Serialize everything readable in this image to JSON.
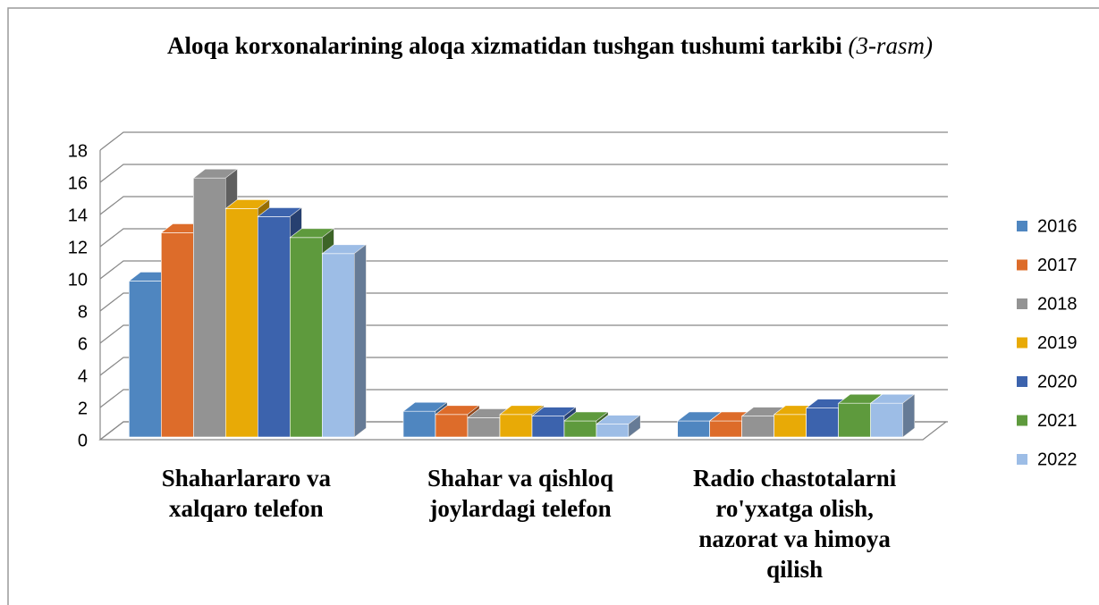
{
  "chart_data": {
    "type": "bar3d",
    "title": "Aloqa korxonalarining aloqa xizmatidan tushgan tushumi tarkibi",
    "subtitle": "(3-rasm)",
    "categories": [
      "Shaharlararo va xalqaro telefon",
      "Shahar va qishloq joylardagi telefon",
      "Radio chastotalarni ro'yxatga olish, nazorat va himoya qilish"
    ],
    "series": [
      {
        "name": "2016",
        "color": "#4f86c0",
        "values": [
          9.7,
          1.6,
          1.0
        ]
      },
      {
        "name": "2017",
        "color": "#dd6c2a",
        "values": [
          12.7,
          1.4,
          1.0
        ]
      },
      {
        "name": "2018",
        "color": "#939393",
        "values": [
          16.1,
          1.2,
          1.3
        ]
      },
      {
        "name": "2019",
        "color": "#e8aa06",
        "values": [
          14.2,
          1.4,
          1.4
        ]
      },
      {
        "name": "2020",
        "color": "#3c63ad",
        "values": [
          13.7,
          1.3,
          1.8
        ]
      },
      {
        "name": "2021",
        "color": "#5e9a3d",
        "values": [
          12.4,
          1.0,
          2.1
        ]
      },
      {
        "name": "2022",
        "color": "#9dbde6",
        "values": [
          11.4,
          0.8,
          2.1
        ]
      }
    ],
    "ylim": [
      0,
      18
    ],
    "yticks": [
      0,
      2,
      4,
      6,
      8,
      10,
      12,
      14,
      16,
      18
    ],
    "grid": true,
    "legend": "right"
  }
}
